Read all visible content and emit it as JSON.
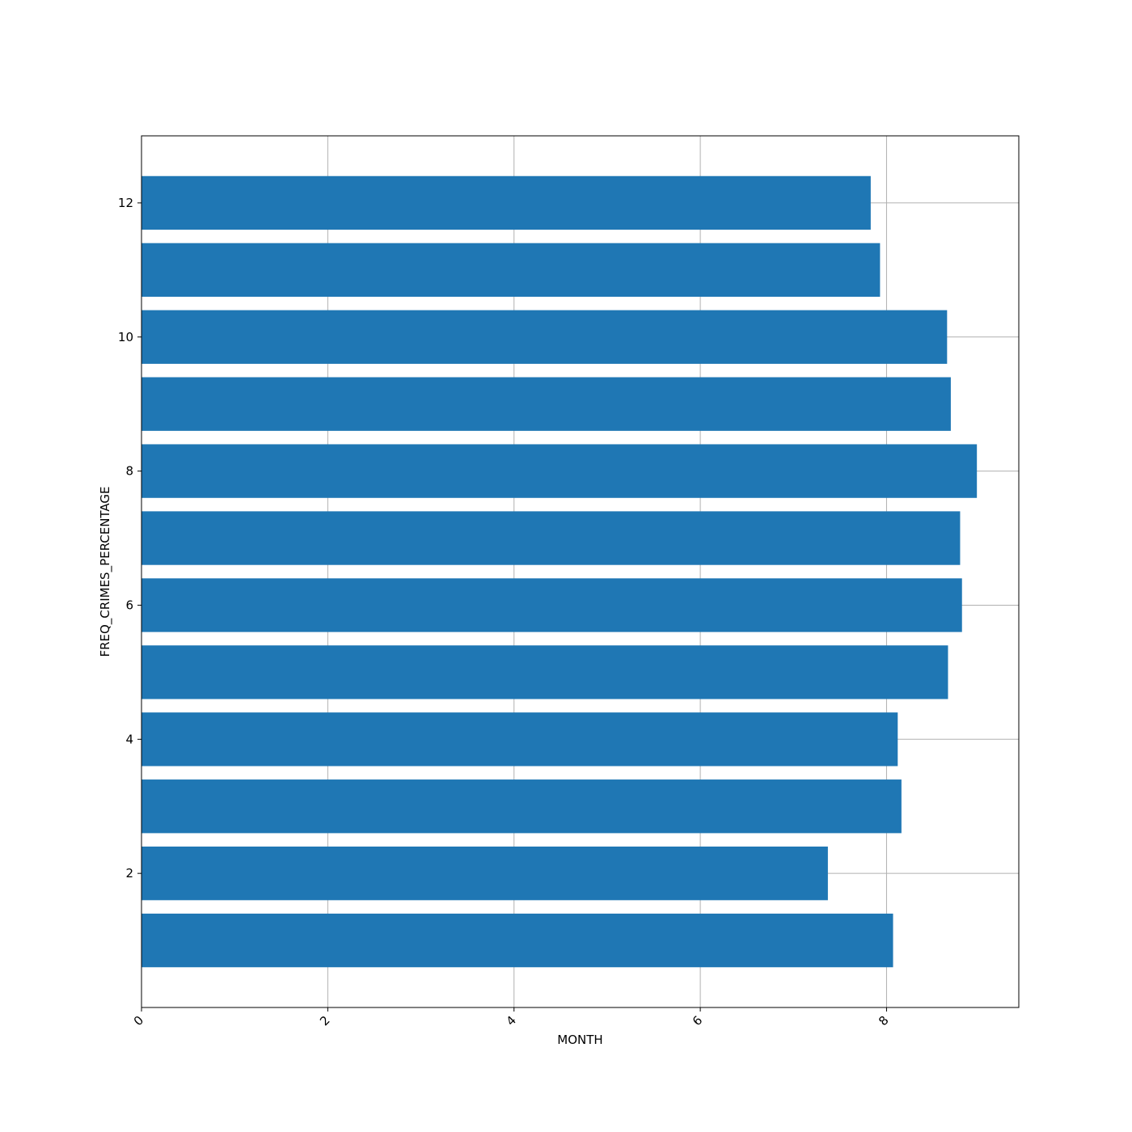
{
  "chart_data": {
    "type": "bar",
    "orientation": "horizontal",
    "xlabel": "MONTH",
    "ylabel": "FREQ_CRIMES_PERCENTAGE",
    "categories": [
      1,
      2,
      3,
      4,
      5,
      6,
      7,
      8,
      9,
      10,
      11,
      12
    ],
    "values": [
      8.07,
      7.37,
      8.16,
      8.12,
      8.66,
      8.81,
      8.79,
      8.97,
      8.69,
      8.65,
      7.93,
      7.83
    ],
    "xlim": [
      0,
      9.42
    ],
    "ylim": [
      -0.0,
      13.0
    ],
    "xticks": [
      0,
      2,
      4,
      6,
      8
    ],
    "xtick_labels": [
      "0",
      "2",
      "4",
      "6",
      "8"
    ],
    "xtick_rotation": -45,
    "yticks": [
      2,
      4,
      6,
      8,
      10,
      12
    ],
    "ytick_labels": [
      "2",
      "4",
      "6",
      "8",
      "10",
      "12"
    ],
    "grid": true,
    "bar_color": "#1f77b4",
    "grid_color": "#b0b0b0"
  }
}
